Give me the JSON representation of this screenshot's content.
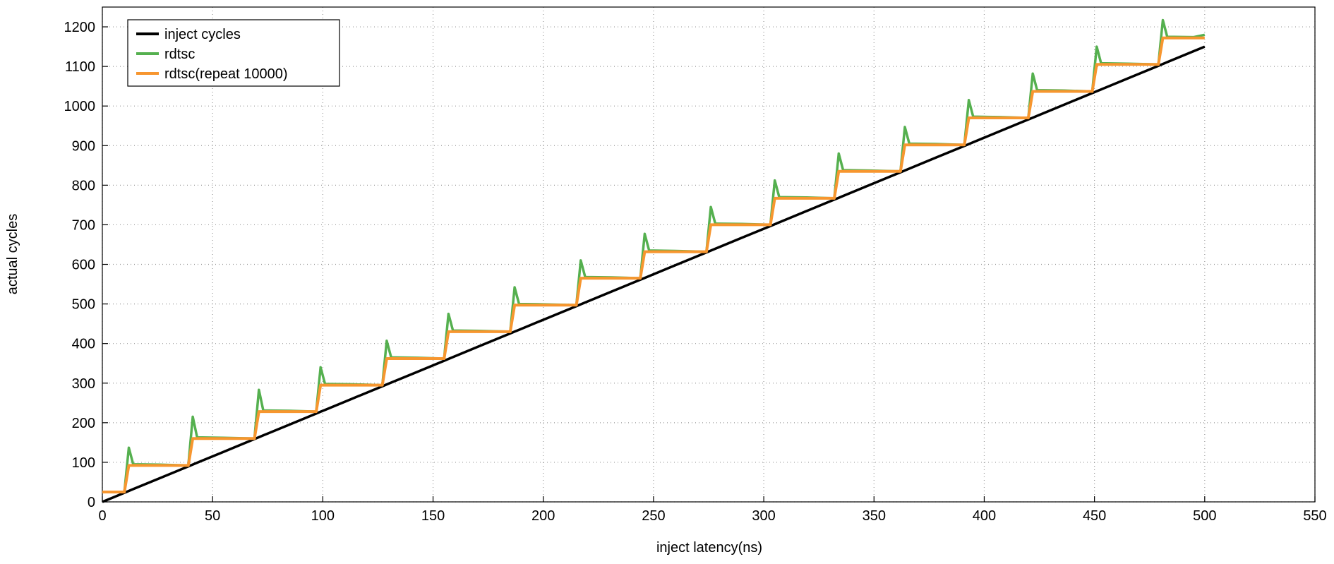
{
  "chart_data": {
    "type": "line",
    "xlabel": "inject latency(ns)",
    "ylabel": "actual cycles",
    "x": [
      0,
      5,
      10,
      12,
      14,
      26,
      39,
      41,
      43,
      55,
      69,
      71,
      73,
      85,
      97,
      99,
      101,
      113,
      127,
      129,
      131,
      143,
      155,
      157,
      159,
      171,
      185,
      187,
      189,
      201,
      215,
      217,
      219,
      231,
      244,
      246,
      248,
      260,
      274,
      276,
      278,
      290,
      303,
      305,
      307,
      319,
      332,
      334,
      336,
      348,
      362,
      364,
      366,
      378,
      391,
      393,
      395,
      407,
      420,
      422,
      424,
      436,
      449,
      451,
      453,
      465,
      479,
      481,
      483,
      495,
      500
    ],
    "series": [
      {
        "name": "inject cycles",
        "color": "#000000",
        "values": [
          0,
          11.5,
          23,
          27.6,
          32.2,
          59.8,
          89.7,
          94.3,
          98.9,
          126.5,
          158.7,
          163.3,
          167.9,
          195.5,
          223.1,
          227.7,
          232.3,
          259.9,
          292.1,
          296.7,
          301.3,
          328.9,
          356.5,
          361.1,
          365.7,
          393.3,
          425.5,
          430.1,
          434.7,
          462.3,
          494.5,
          499.1,
          503.7,
          531.3,
          561.2,
          565.8,
          570.4,
          598,
          630.2,
          634.8,
          639.4,
          667,
          696.9,
          701.5,
          706.1,
          733.7,
          763.6,
          768.2,
          772.8,
          800.4,
          832.6,
          837.2,
          841.8,
          869.4,
          899.3,
          903.9,
          908.5,
          936.1,
          966,
          970.6,
          975.2,
          1002.8,
          1032.7,
          1037.3,
          1041.9,
          1069.5,
          1101.7,
          1106.3,
          1110.9,
          1138.5,
          1150
        ]
      },
      {
        "name": "rdtsc",
        "color": "#55b04f",
        "values": [
          25,
          25,
          25,
          137,
          95,
          94,
          92,
          215,
          163,
          162,
          160,
          283,
          231,
          230,
          228,
          340,
          298,
          297,
          295,
          407,
          365,
          364,
          362,
          475,
          433,
          432,
          430,
          542,
          500,
          499,
          497,
          610,
          568,
          567,
          565,
          677,
          635,
          634,
          632,
          745,
          703,
          702,
          700,
          812,
          770,
          769,
          767,
          880,
          838,
          837,
          835,
          947,
          905,
          904,
          902,
          1015,
          973,
          972,
          970,
          1082,
          1040,
          1039,
          1037,
          1150,
          1108,
          1107,
          1105,
          1217,
          1175,
          1174,
          1180
        ]
      },
      {
        "name": "rdtsc(repeat 10000)",
        "color": "#f7962f",
        "values": [
          25,
          25,
          25,
          92,
          92,
          92,
          92,
          160,
          160,
          160,
          160,
          228,
          228,
          228,
          228,
          295,
          295,
          295,
          295,
          362,
          362,
          362,
          362,
          430,
          430,
          430,
          430,
          497,
          497,
          497,
          497,
          565,
          565,
          565,
          565,
          632,
          632,
          632,
          632,
          700,
          700,
          700,
          700,
          767,
          767,
          767,
          767,
          835,
          835,
          835,
          835,
          902,
          902,
          902,
          902,
          970,
          970,
          970,
          970,
          1037,
          1037,
          1037,
          1037,
          1105,
          1105,
          1105,
          1105,
          1172,
          1172,
          1172,
          1172
        ]
      }
    ],
    "xlim": [
      0,
      550
    ],
    "xticks": [
      0,
      50,
      100,
      150,
      200,
      250,
      300,
      350,
      400,
      450,
      500,
      550
    ],
    "ylim": [
      0,
      1250
    ],
    "yticks": [
      0,
      100,
      200,
      300,
      400,
      500,
      600,
      700,
      800,
      900,
      1000,
      1100,
      1200
    ],
    "grid": true,
    "legend": "upper left"
  }
}
